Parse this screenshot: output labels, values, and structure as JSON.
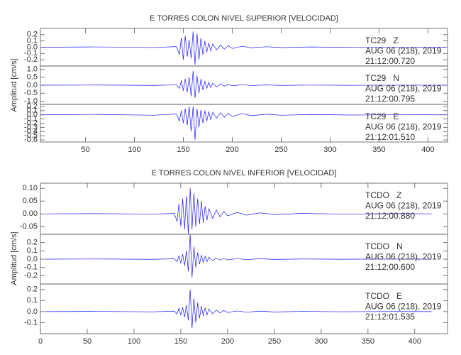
{
  "chart_data": [
    {
      "type": "line",
      "title": "E TORRES COLON NIVEL SUPERIOR [VELOCIDAD]",
      "ylabel": "Amplitud [cm/s]",
      "color": "#1a1aff",
      "xlim": [
        4,
        420
      ],
      "xticks": [
        50,
        100,
        150,
        200,
        250,
        300,
        350,
        400
      ],
      "x": [
        5,
        60,
        120,
        143,
        146,
        148,
        150,
        152,
        154,
        156,
        158,
        160,
        162,
        164,
        166,
        168,
        170,
        172,
        174,
        176,
        178,
        180,
        184,
        188,
        192,
        196,
        200,
        210,
        220,
        235,
        250,
        280,
        320,
        380,
        418
      ],
      "panels": [
        {
          "ylim": [
            -0.3,
            0.3
          ],
          "yticks": [
            0.2,
            0.1,
            {
              "value": 0,
              "label": "0.0"
            },
            -0.1,
            -0.2
          ],
          "annotations": [
            "TC29   Z",
            "AUG 06 (218), 2019",
            "21:12:00.720"
          ],
          "values": [
            0,
            0.005,
            -0.005,
            0.01,
            -0.12,
            0.15,
            -0.2,
            0.18,
            -0.15,
            0.12,
            -0.18,
            0.25,
            -0.28,
            0.22,
            -0.2,
            0.15,
            -0.12,
            0.1,
            -0.08,
            0.07,
            -0.06,
            0.05,
            -0.04,
            0.035,
            -0.03,
            0.025,
            -0.02,
            0.015,
            -0.01,
            0.008,
            -0.006,
            0.004,
            -0.003,
            0.002,
            0
          ]
        },
        {
          "ylim": [
            -1.2,
            1.2
          ],
          "yticks": [
            {
              "value": 1,
              "label": "1.0"
            },
            0.5,
            {
              "value": 0,
              "label": "0.0"
            },
            -0.5,
            {
              "value": -1,
              "label": "-1.0"
            }
          ],
          "annotations": [
            "TC29   N",
            "AUG 06 (218), 2019",
            "21:12:00.795"
          ],
          "values": [
            0,
            0.01,
            -0.01,
            0.02,
            -0.2,
            0.3,
            -0.35,
            0.4,
            -0.45,
            0.5,
            -0.7,
            0.9,
            -0.8,
            0.6,
            -0.5,
            0.4,
            -0.3,
            0.25,
            -0.2,
            0.18,
            -0.15,
            0.12,
            -0.1,
            0.08,
            -0.06,
            0.05,
            -0.04,
            0.03,
            -0.02,
            0.015,
            -0.01,
            0.008,
            -0.005,
            0.003,
            0
          ]
        },
        {
          "ylim": [
            -0.65,
            0.25
          ],
          "yticks": [
            0.2,
            0.1,
            {
              "value": 0,
              "label": "0.0"
            },
            -0.1,
            -0.2,
            -0.3,
            -0.4,
            -0.5,
            -0.6
          ],
          "annotations": [
            "TC29   E",
            "AUG 06 (218), 2019",
            "21:12:01.510"
          ],
          "values": [
            0,
            0.01,
            -0.01,
            0.02,
            -0.15,
            0.1,
            -0.2,
            0.15,
            -0.25,
            0.2,
            -0.4,
            0.2,
            -0.6,
            0.15,
            -0.3,
            0.12,
            -0.2,
            0.1,
            -0.15,
            0.08,
            -0.12,
            0.06,
            -0.08,
            0.05,
            -0.06,
            0.04,
            -0.04,
            0.03,
            -0.02,
            0.015,
            -0.01,
            0.008,
            -0.005,
            0.003,
            0
          ]
        }
      ]
    },
    {
      "type": "line",
      "title": "E TORRES COLON NIVEL INFERIOR [VELOCIDAD]",
      "ylabel": "Amplitud [cm/s]",
      "color": "#1a1aff",
      "xlim": [
        0,
        435
      ],
      "xticks": [
        0,
        50,
        100,
        150,
        200,
        250,
        300,
        350,
        400
      ],
      "x": [
        5,
        60,
        120,
        143,
        146,
        148,
        150,
        152,
        154,
        156,
        158,
        160,
        162,
        164,
        166,
        168,
        170,
        172,
        174,
        176,
        178,
        180,
        184,
        188,
        192,
        196,
        200,
        210,
        220,
        235,
        250,
        280,
        320,
        380,
        418
      ],
      "panels": [
        {
          "ylim": [
            -0.08,
            0.12
          ],
          "yticks": [
            {
              "value": 0.1,
              "label": "0.10"
            },
            0.05,
            {
              "value": 0,
              "label": "0.00"
            },
            -0.05
          ],
          "annotations": [
            "TCDO   Z",
            "AUG 06 (218), 2019",
            "21:12:00.880"
          ],
          "values": [
            0,
            0.001,
            -0.001,
            0.002,
            -0.03,
            0.04,
            -0.05,
            0.06,
            -0.06,
            0.07,
            -0.08,
            0.1,
            -0.06,
            0.08,
            -0.05,
            0.06,
            -0.04,
            0.05,
            -0.035,
            0.03,
            -0.025,
            0.02,
            -0.018,
            0.015,
            -0.012,
            0.01,
            -0.008,
            0.006,
            -0.005,
            0.004,
            -0.003,
            0.002,
            -0.001,
            0.001,
            0
          ]
        },
        {
          "ylim": [
            -0.3,
            0.3
          ],
          "yticks": [
            0.2,
            0.1,
            {
              "value": 0,
              "label": "0.0"
            },
            -0.1,
            -0.2
          ],
          "annotations": [
            "TCDO   N",
            "AUG 06 (218), 2019",
            "21:12:00.600"
          ],
          "values": [
            0,
            0.002,
            -0.002,
            0.004,
            -0.03,
            0.04,
            -0.05,
            0.06,
            -0.08,
            0.1,
            -0.15,
            0.3,
            -0.22,
            0.15,
            -0.1,
            0.08,
            -0.06,
            0.05,
            -0.04,
            0.035,
            -0.03,
            0.025,
            -0.02,
            0.015,
            -0.012,
            0.01,
            -0.008,
            0.006,
            -0.005,
            0.004,
            -0.003,
            0.002,
            -0.001,
            0.001,
            0
          ]
        },
        {
          "ylim": [
            -0.2,
            0.25
          ],
          "yticks": [
            0.2,
            0.1,
            {
              "value": 0,
              "label": "0.0"
            },
            -0.1
          ],
          "annotations": [
            "TCDO   E",
            "AUG 06 (218), 2019",
            "21:12:01.535"
          ],
          "values": [
            0,
            0.002,
            -0.002,
            0.004,
            -0.02,
            0.03,
            -0.03,
            0.04,
            -0.05,
            0.06,
            -0.08,
            0.2,
            -0.15,
            0.12,
            -0.1,
            0.08,
            -0.06,
            0.05,
            -0.04,
            0.035,
            -0.03,
            0.025,
            -0.02,
            0.015,
            -0.012,
            0.01,
            -0.008,
            0.006,
            -0.005,
            0.004,
            -0.003,
            0.002,
            -0.001,
            0.001,
            0
          ]
        }
      ]
    }
  ]
}
